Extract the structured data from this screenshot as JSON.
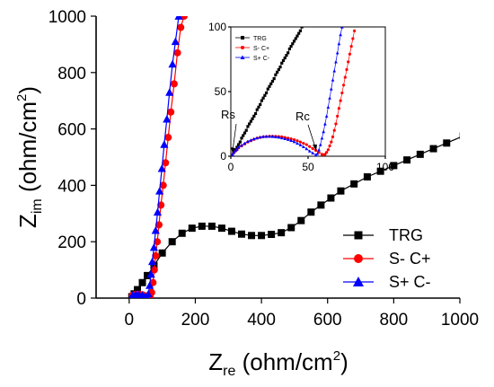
{
  "chart_data": [
    {
      "type": "scatter",
      "xlabel_main": "Z",
      "xlabel_sub": "re",
      "xlabel_unit": " (ohm/cm",
      "xlabel_sup": "2",
      "xlabel_close": ")",
      "ylabel_main": "Z",
      "ylabel_sub": "im",
      "ylabel_unit": " (ohm/cm",
      "ylabel_sup": "2",
      "ylabel_close": ")",
      "xlim": [
        -100,
        1000
      ],
      "ylim": [
        0,
        1000
      ],
      "x_ticks": [
        "0",
        "200",
        "400",
        "600",
        "800",
        "1000"
      ],
      "x_tick_values": [
        0,
        200,
        400,
        600,
        800,
        1000
      ],
      "y_ticks": [
        "0",
        "200",
        "400",
        "600",
        "800",
        "1000"
      ],
      "y_tick_values": [
        0,
        200,
        400,
        600,
        800,
        1000
      ],
      "legend_position": "lower-right",
      "series": [
        {
          "name": "TRG",
          "color": "#000000",
          "marker": "square",
          "x": [
            8,
            15,
            25,
            40,
            55,
            75,
            100,
            130,
            160,
            190,
            220,
            250,
            280,
            310,
            340,
            370,
            400,
            430,
            460,
            490,
            520,
            550,
            580,
            610,
            640,
            680,
            720,
            760,
            800,
            840,
            880,
            920,
            960,
            1010
          ],
          "y": [
            5,
            15,
            30,
            55,
            80,
            115,
            160,
            200,
            230,
            248,
            255,
            255,
            248,
            237,
            227,
            222,
            222,
            226,
            232,
            250,
            275,
            305,
            330,
            355,
            380,
            405,
            430,
            450,
            470,
            490,
            510,
            530,
            550,
            575
          ]
        },
        {
          "name": "S- C+",
          "color": "#ff0000",
          "marker": "circle",
          "x": [
            10,
            20,
            30,
            40,
            50,
            58,
            64,
            68,
            72,
            76,
            80,
            85,
            90,
            96,
            103,
            110,
            118,
            126,
            136,
            146,
            156,
            166
          ],
          "y": [
            10,
            14,
            14,
            12,
            8,
            4,
            2,
            20,
            55,
            100,
            150,
            200,
            260,
            330,
            400,
            480,
            570,
            660,
            760,
            870,
            960,
            1000
          ]
        },
        {
          "name": "S+ C-",
          "color": "#0000ff",
          "marker": "triangle",
          "x": [
            10,
            20,
            30,
            40,
            48,
            54,
            58,
            62,
            66,
            70,
            75,
            80,
            86,
            92,
            99,
            106,
            114,
            122,
            131,
            140,
            150
          ],
          "y": [
            10,
            14,
            13,
            10,
            5,
            2,
            15,
            45,
            85,
            130,
            180,
            240,
            305,
            380,
            460,
            545,
            635,
            730,
            830,
            910,
            1000
          ]
        }
      ]
    },
    {
      "type": "scatter",
      "xlim": [
        0,
        100
      ],
      "ylim": [
        0,
        100
      ],
      "x_ticks": [
        "0",
        "50",
        "100"
      ],
      "x_tick_values": [
        0,
        50,
        100
      ],
      "y_ticks": [
        "0",
        "50",
        "100"
      ],
      "y_tick_values": [
        0,
        50,
        100
      ],
      "legend_position": "top-left",
      "annotations": [
        {
          "text": "Rs",
          "x": 1,
          "y": 2
        },
        {
          "text": "Rc",
          "x": 56,
          "y": 3
        }
      ],
      "series": [
        {
          "name": "TRG",
          "color": "#000000",
          "marker": "square",
          "x": [
            1,
            2,
            3,
            4,
            5,
            6,
            7,
            8,
            9,
            10,
            11,
            12,
            13,
            14,
            15,
            16,
            17,
            18,
            19,
            20,
            21,
            22,
            23,
            24,
            25,
            26,
            27,
            28,
            29,
            30,
            31,
            32,
            33,
            34,
            35,
            36,
            37,
            38,
            39,
            40,
            41,
            42,
            43,
            44,
            45,
            46
          ],
          "y": [
            1,
            3,
            5,
            7,
            9,
            11,
            14,
            16,
            18,
            20,
            23,
            25,
            27,
            29,
            31,
            33,
            36,
            38,
            40,
            43,
            45,
            47,
            49,
            52,
            54,
            56,
            58,
            60,
            63,
            65,
            67,
            69,
            72,
            74,
            76,
            78,
            80,
            83,
            85,
            87,
            89,
            91,
            93,
            95,
            97,
            100
          ]
        },
        {
          "name": "S- C+",
          "color": "#ff0000",
          "marker": "circle",
          "x": [
            0.5,
            1,
            2,
            3,
            4,
            5,
            7,
            9,
            11,
            13,
            15,
            17,
            19,
            21,
            23,
            25,
            27,
            29,
            31,
            33,
            35,
            37,
            39,
            41,
            43,
            45,
            47,
            49,
            51,
            53,
            55,
            57,
            59,
            60,
            61,
            62,
            63,
            64,
            65,
            66,
            67,
            68,
            69,
            70,
            71,
            72,
            73,
            74,
            75,
            76,
            77,
            78,
            79,
            80
          ],
          "y": [
            0.5,
            1.5,
            3,
            4,
            5,
            6.5,
            8,
            9.5,
            11,
            12,
            13,
            14,
            14.5,
            15,
            15.2,
            15.5,
            15.5,
            15.4,
            15.2,
            15,
            14.5,
            14,
            13.5,
            12.8,
            12,
            11,
            10,
            9,
            7.5,
            6,
            4.5,
            3,
            1.5,
            1,
            1.5,
            3,
            5,
            8,
            11,
            15,
            20,
            25,
            31,
            37,
            43,
            49,
            55,
            61,
            67,
            73,
            79,
            85,
            91,
            97
          ]
        },
        {
          "name": "S+ C-",
          "color": "#0000ff",
          "marker": "triangle",
          "x": [
            0.5,
            1,
            2,
            3,
            4,
            5,
            7,
            9,
            11,
            13,
            15,
            17,
            19,
            21,
            23,
            25,
            27,
            29,
            31,
            33,
            35,
            37,
            39,
            41,
            43,
            45,
            47,
            49,
            51,
            53,
            55,
            56,
            57,
            58,
            59,
            60,
            61,
            62,
            63,
            64,
            65,
            66,
            67,
            68,
            69,
            70,
            71,
            72
          ],
          "y": [
            0.5,
            1.5,
            3,
            4.5,
            5.5,
            7,
            8.5,
            10,
            11.5,
            12.5,
            13.5,
            14.2,
            14.8,
            15.2,
            15.3,
            15.3,
            15.2,
            15,
            14.7,
            14.2,
            13.6,
            13,
            12.2,
            11.2,
            10,
            8.8,
            7.3,
            5.8,
            4,
            2.5,
            1,
            2,
            5,
            9,
            14,
            19,
            25,
            31,
            38,
            45,
            52,
            59,
            66,
            73,
            80,
            87,
            94,
            100
          ]
        }
      ]
    }
  ]
}
